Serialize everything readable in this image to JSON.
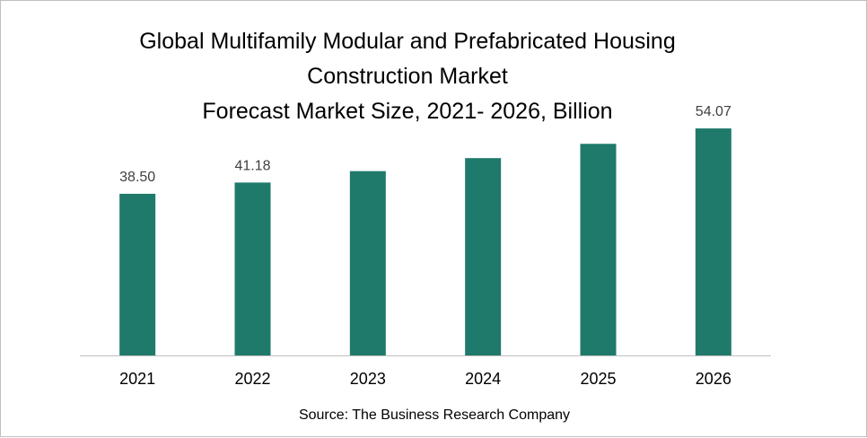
{
  "chart_data": {
    "type": "bar",
    "title_lines": [
      "Global Multifamily Modular and Prefabricated Housing",
      "Construction Market",
      "Forecast Market Size, 2021- 2026, Billion"
    ],
    "categories": [
      "2021",
      "2022",
      "2023",
      "2024",
      "2025",
      "2026"
    ],
    "values": [
      38.5,
      41.18,
      43.9,
      47.0,
      50.4,
      54.07
    ],
    "data_labels": [
      "38.50",
      "41.18",
      "",
      "",
      "",
      "54.07"
    ],
    "ylim": [
      0,
      62
    ],
    "grid": false,
    "legend": "none",
    "bar_color": "#1f7a6b",
    "source": "Source: The Business Research Company"
  }
}
